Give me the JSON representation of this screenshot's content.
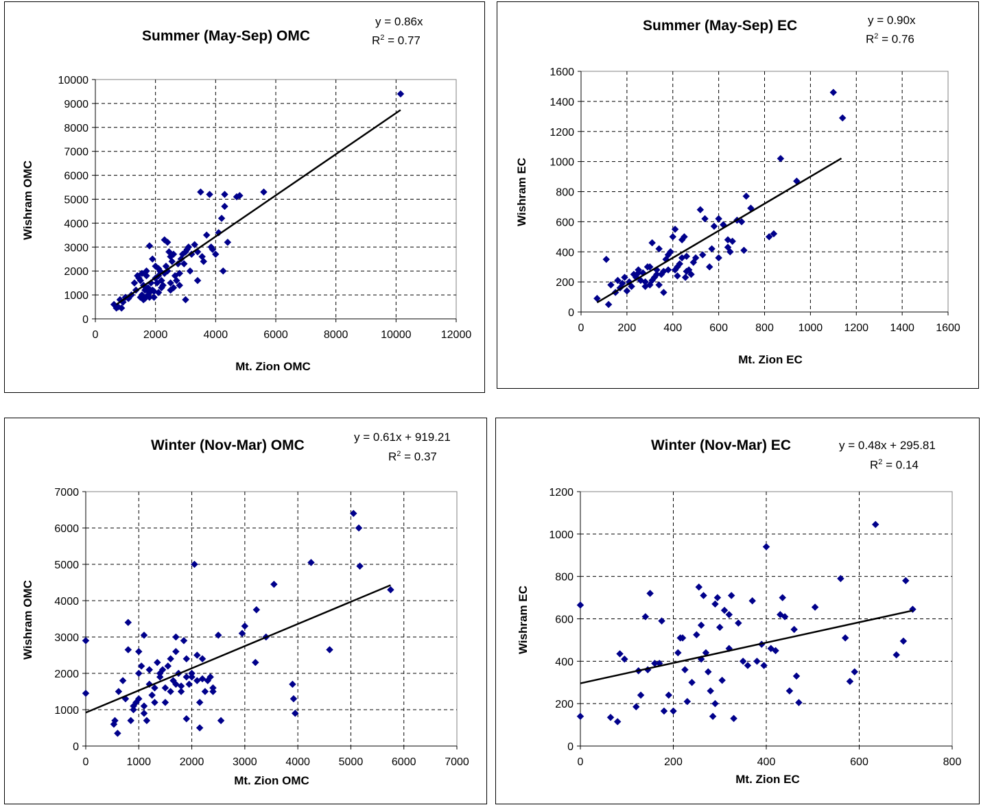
{
  "chart_data": [
    {
      "type": "scatter",
      "title": "Summer (May-Sep) OMC",
      "xlabel": "Mt. Zion OMC",
      "ylabel": "Wishram OMC",
      "xlim": [
        0,
        12000
      ],
      "ylim": [
        0,
        10000
      ],
      "xticks": [
        "0",
        "2000",
        "4000",
        "6000",
        "8000",
        "10000",
        "12000"
      ],
      "yticks": [
        "0",
        "1000",
        "2000",
        "3000",
        "4000",
        "5000",
        "6000",
        "7000",
        "8000",
        "9000",
        "10000"
      ],
      "equation": "y = 0.86x",
      "r2_prefix": "R",
      "r2_sup": "2",
      "r2_value": " = 0.77",
      "trendline": {
        "slope": 0.86,
        "intercept": 0,
        "x_range": [
          700,
          10150
        ]
      },
      "grid": true,
      "marker_color": "#00008B",
      "x": [
        620,
        700,
        760,
        820,
        870,
        920,
        1000,
        1100,
        1200,
        1300,
        1350,
        1400,
        1450,
        1500,
        1500,
        1550,
        1600,
        1650,
        1700,
        1700,
        1750,
        1800,
        1800,
        1850,
        1900,
        1900,
        1950,
        2000,
        2000,
        2050,
        2100,
        2100,
        2150,
        2200,
        2250,
        2300,
        2300,
        2350,
        2400,
        2400,
        2450,
        2500,
        2500,
        2550,
        2600,
        2650,
        2700,
        2750,
        2800,
        2850,
        2900,
        2950,
        3000,
        3050,
        3100,
        3200,
        3300,
        3400,
        3500,
        3550,
        3700,
        3800,
        3850,
        3900,
        4000,
        4100,
        4200,
        4250,
        4300,
        4400,
        4700,
        4800,
        5600,
        10150,
        1600,
        1800,
        2100,
        2600,
        3000,
        3400,
        1550,
        1650,
        1750,
        1950,
        2200,
        2500,
        2800,
        3150,
        3600,
        4300
      ],
      "y": [
        600,
        450,
        500,
        800,
        450,
        700,
        900,
        850,
        1000,
        1500,
        1200,
        1800,
        1700,
        1600,
        900,
        1900,
        1400,
        1200,
        1800,
        2000,
        1300,
        1100,
        3050,
        1500,
        2500,
        1200,
        900,
        2200,
        1700,
        1500,
        2100,
        1800,
        2000,
        1600,
        1400,
        1900,
        3300,
        2200,
        2000,
        3200,
        2800,
        2600,
        1500,
        2400,
        2700,
        1800,
        1600,
        2300,
        1900,
        2500,
        2700,
        2300,
        2800,
        2900,
        3000,
        2700,
        3100,
        2800,
        5300,
        2600,
        3500,
        5200,
        3000,
        2900,
        2700,
        3600,
        4200,
        2000,
        5200,
        3200,
        5100,
        5150,
        5300,
        9400,
        800,
        900,
        1100,
        1300,
        800,
        1600,
        1000,
        850,
        1000,
        1150,
        1300,
        1200,
        1400,
        2000,
        2400,
        4700
      ]
    },
    {
      "type": "scatter",
      "title": "Summer (May-Sep) EC",
      "xlabel": "Mt. Zion EC",
      "ylabel": "Wishram EC",
      "xlim": [
        0,
        1600
      ],
      "ylim": [
        0,
        1600
      ],
      "xticks": [
        "0",
        "200",
        "400",
        "600",
        "800",
        "1000",
        "1200",
        "1400",
        "1600"
      ],
      "yticks": [
        "0",
        "200",
        "400",
        "600",
        "800",
        "1000",
        "1200",
        "1400",
        "1600"
      ],
      "equation": "y = 0.90x",
      "r2_prefix": "R",
      "r2_sup": "2",
      "r2_value": " = 0.76",
      "trendline": {
        "slope": 0.9,
        "intercept": 0,
        "x_range": [
          70,
          1135
        ]
      },
      "grid": true,
      "marker_color": "#00008B",
      "x": [
        70,
        110,
        120,
        130,
        150,
        160,
        170,
        180,
        190,
        200,
        210,
        220,
        230,
        240,
        250,
        260,
        270,
        280,
        290,
        300,
        310,
        320,
        330,
        340,
        350,
        360,
        370,
        380,
        390,
        400,
        410,
        420,
        430,
        440,
        450,
        460,
        470,
        480,
        500,
        520,
        540,
        560,
        580,
        600,
        620,
        640,
        650,
        660,
        680,
        700,
        720,
        740,
        820,
        840,
        870,
        940,
        1100,
        1140,
        300,
        330,
        360,
        410,
        440,
        460,
        490,
        530,
        570,
        600,
        640,
        710,
        250,
        280,
        310,
        340,
        380,
        420,
        455
      ],
      "y": [
        90,
        350,
        50,
        180,
        130,
        210,
        160,
        190,
        230,
        140,
        200,
        170,
        250,
        230,
        280,
        210,
        260,
        200,
        300,
        300,
        460,
        230,
        280,
        420,
        250,
        270,
        350,
        380,
        400,
        500,
        550,
        300,
        320,
        480,
        500,
        370,
        280,
        250,
        360,
        680,
        620,
        300,
        570,
        620,
        580,
        480,
        400,
        470,
        610,
        600,
        770,
        690,
        500,
        520,
        1020,
        870,
        1460,
        1290,
        180,
        250,
        130,
        280,
        360,
        270,
        330,
        380,
        420,
        360,
        430,
        410,
        260,
        170,
        210,
        180,
        280,
        240,
        230
      ]
    },
    {
      "type": "scatter",
      "title": "Winter (Nov-Mar) OMC",
      "xlabel": "Mt. Zion OMC",
      "ylabel": "Wishram OMC",
      "xlim": [
        0,
        7000
      ],
      "ylim": [
        0,
        7000
      ],
      "xticks": [
        "0",
        "1000",
        "2000",
        "3000",
        "4000",
        "5000",
        "6000",
        "7000"
      ],
      "yticks": [
        "0",
        "1000",
        "2000",
        "3000",
        "4000",
        "5000",
        "6000",
        "7000"
      ],
      "equation": "y = 0.61x + 919.21",
      "r2_prefix": "R",
      "r2_sup": "2",
      "r2_value": " = 0.37",
      "trendline": {
        "slope": 0.61,
        "intercept": 919.21,
        "x_range": [
          0,
          5750
        ]
      },
      "grid": true,
      "marker_color": "#00008B",
      "x": [
        0,
        0,
        530,
        550,
        600,
        620,
        700,
        750,
        800,
        800,
        850,
        900,
        950,
        1000,
        1000,
        1050,
        1100,
        1100,
        1150,
        1200,
        1250,
        1300,
        1350,
        1400,
        1450,
        1500,
        1550,
        1600,
        1650,
        1700,
        1700,
        1750,
        1800,
        1850,
        1900,
        1900,
        1950,
        2000,
        2000,
        2050,
        2100,
        2150,
        2150,
        2200,
        2250,
        2300,
        2350,
        2400,
        2500,
        2550,
        2950,
        3000,
        3200,
        3220,
        3400,
        3550,
        3900,
        3920,
        3950,
        4250,
        4600,
        5050,
        5150,
        5170,
        5750,
        900,
        1000,
        1200,
        1400,
        1600,
        1800,
        2200,
        2400,
        1100,
        1300,
        1500,
        1700,
        1900,
        2100
      ],
      "y": [
        2900,
        1450,
        600,
        700,
        350,
        1500,
        1800,
        1300,
        3400,
        2650,
        700,
        1000,
        1200,
        2000,
        2600,
        2200,
        3050,
        1100,
        700,
        2100,
        1400,
        1600,
        2300,
        1900,
        2100,
        1200,
        2200,
        2400,
        1800,
        2600,
        3000,
        2000,
        1500,
        2900,
        2400,
        1900,
        1700,
        2000,
        1900,
        5000,
        2500,
        1200,
        500,
        2400,
        1500,
        1800,
        1900,
        1600,
        3050,
        700,
        3100,
        3300,
        2300,
        3750,
        3000,
        4450,
        1700,
        1300,
        900,
        5050,
        2650,
        6400,
        6000,
        4950,
        4300,
        1100,
        1300,
        1700,
        2000,
        1500,
        1650,
        1850,
        1500,
        900,
        1200,
        1600,
        1700,
        750,
        1800
      ]
    },
    {
      "type": "scatter",
      "title": "Winter (Nov-Mar) EC",
      "xlabel": "Mt. Zion EC",
      "ylabel": "Wishram EC",
      "xlim": [
        0,
        800
      ],
      "ylim": [
        0,
        1200
      ],
      "xticks": [
        "0",
        "200",
        "400",
        "600",
        "800"
      ],
      "yticks": [
        "0",
        "200",
        "400",
        "600",
        "800",
        "1000",
        "1200"
      ],
      "equation": "y = 0.48x + 295.81",
      "r2_prefix": "R",
      "r2_sup": "2",
      "r2_value": " = 0.14",
      "trendline": {
        "slope": 0.48,
        "intercept": 295.81,
        "x_range": [
          0,
          715
        ]
      },
      "grid": true,
      "marker_color": "#00008B",
      "x": [
        0,
        0,
        65,
        80,
        85,
        95,
        120,
        125,
        130,
        140,
        145,
        150,
        160,
        170,
        175,
        180,
        190,
        200,
        210,
        215,
        220,
        225,
        240,
        250,
        255,
        260,
        265,
        270,
        275,
        280,
        285,
        290,
        295,
        300,
        305,
        310,
        320,
        325,
        330,
        340,
        350,
        360,
        370,
        380,
        390,
        395,
        400,
        410,
        420,
        430,
        435,
        440,
        450,
        460,
        465,
        470,
        505,
        560,
        570,
        580,
        590,
        635,
        680,
        695,
        700,
        715,
        230,
        260,
        290,
        320
      ],
      "y": [
        665,
        140,
        135,
        115,
        435,
        410,
        185,
        355,
        240,
        610,
        360,
        720,
        390,
        390,
        590,
        165,
        240,
        165,
        440,
        510,
        510,
        360,
        300,
        525,
        750,
        410,
        710,
        440,
        350,
        260,
        140,
        200,
        700,
        560,
        310,
        640,
        620,
        710,
        130,
        580,
        400,
        380,
        685,
        400,
        480,
        380,
        940,
        460,
        450,
        620,
        700,
        610,
        260,
        550,
        330,
        205,
        655,
        790,
        510,
        305,
        350,
        1045,
        430,
        495,
        780,
        645,
        210,
        570,
        670,
        460
      ]
    }
  ]
}
